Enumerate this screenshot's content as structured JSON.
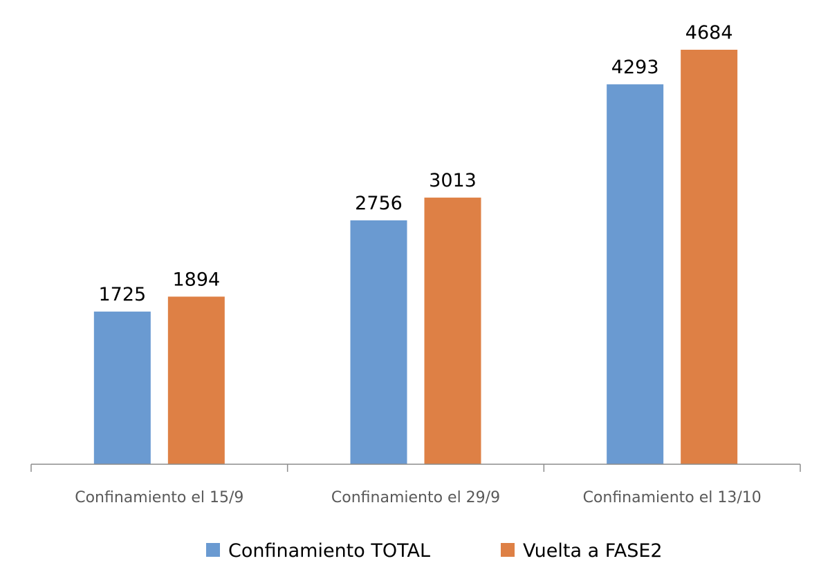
{
  "chart_data": {
    "type": "bar",
    "categories": [
      "Confinamiento el 15/9",
      "Confinamiento el 29/9",
      "Confinamiento el 13/10"
    ],
    "series": [
      {
        "name": "Confinamiento TOTAL",
        "values": [
          1725,
          2756,
          4293
        ],
        "color": "#6A9AD1"
      },
      {
        "name": "Vuelta a FASE2",
        "values": [
          1894,
          3013,
          4684
        ],
        "color": "#DE8045"
      }
    ],
    "title": "",
    "xlabel": "",
    "ylabel": "",
    "ylim": [
      0,
      4684
    ],
    "grid": false,
    "legend": "bottom",
    "data_labels": true
  }
}
